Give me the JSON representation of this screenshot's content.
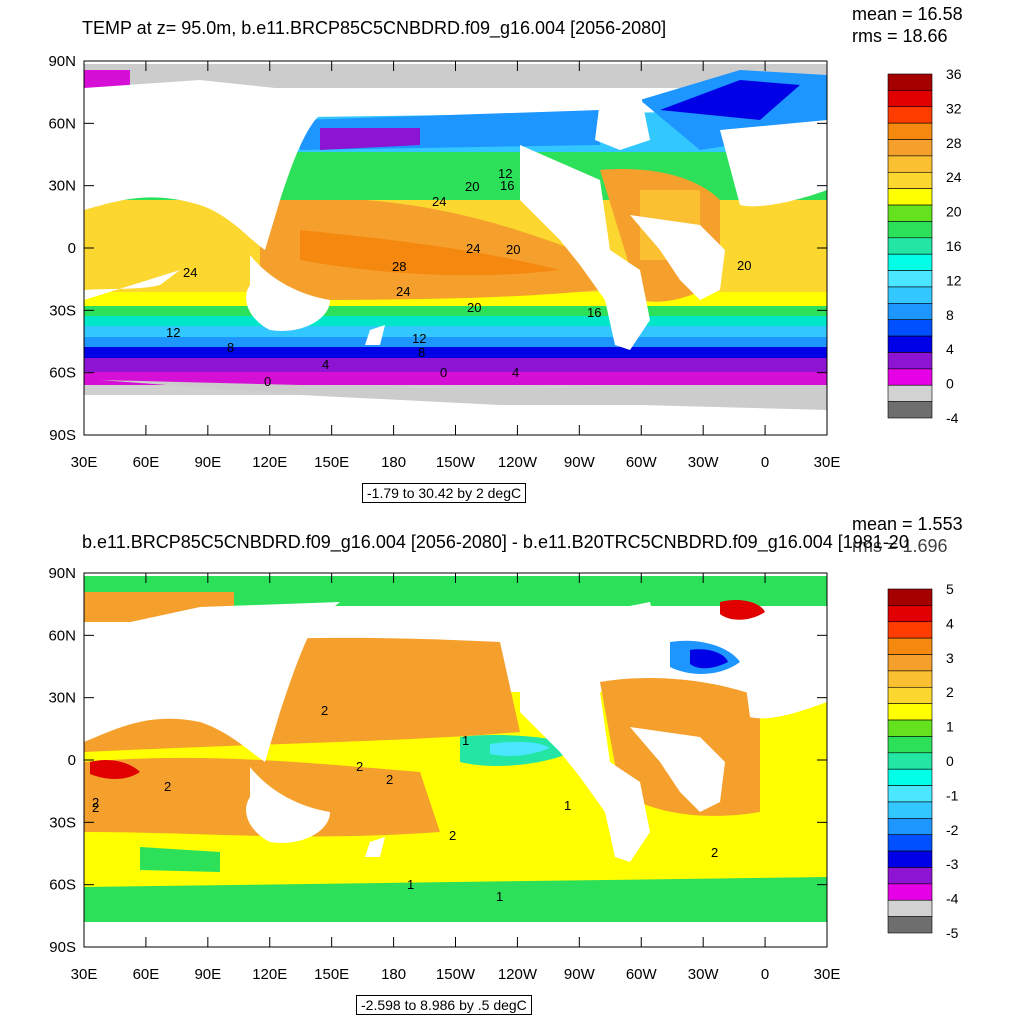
{
  "panels": [
    {
      "title": "TEMP at z=  95.0m, b.e11.BRCP85C5CNBDRD.f09_g16.004 [2056-2080]",
      "mean_text": "mean = 16.58",
      "rms_text": "rms = 18.66",
      "range_text": "-1.79 to 30.42 by 2 degC",
      "contour_labels": [
        "12",
        "16",
        "20",
        "24",
        "24",
        "24",
        "20",
        "20",
        "28",
        "24",
        "20",
        "16",
        "12",
        "8",
        "12",
        "8",
        "4",
        "4",
        "0",
        "0"
      ],
      "colorbar": {
        "labels": [
          "36",
          "32",
          "28",
          "24",
          "20",
          "16",
          "12",
          "8",
          "4",
          "0",
          "-4"
        ],
        "colors": [
          "#a50000",
          "#e00000",
          "#ff3c00",
          "#f5880f",
          "#f5a02d",
          "#fbbf32",
          "#fbd730",
          "#ffff00",
          "#64e21e",
          "#2de05a",
          "#23e6a5",
          "#00ffe6",
          "#4be6ff",
          "#32c8ff",
          "#1e96ff",
          "#0050ff",
          "#0000e6",
          "#8c14d2",
          "#e600e6",
          "#d2d2d2",
          "#6e6e6e"
        ]
      }
    },
    {
      "title": "b.e11.BRCP85C5CNBDRD.f09_g16.004 [2056-2080] - b.e11.B20TRC5CNBDRD.f09_g16.004 [1981-20",
      "mean_text": "mean = 1.553",
      "rms_text": "rms = 1.696",
      "range_text": "-2.598 to 8.986 by .5 degC",
      "contour_labels": [
        "2",
        "2",
        "2",
        "1",
        "2",
        "2",
        "1",
        "2",
        "2",
        "2",
        "1",
        "1"
      ],
      "colorbar": {
        "labels": [
          "5",
          "4",
          "3",
          "2",
          "1",
          "0",
          "-1",
          "-2",
          "-3",
          "-4",
          "-5"
        ],
        "colors": [
          "#a50000",
          "#e00000",
          "#ff3c00",
          "#f5880f",
          "#f5a02d",
          "#fbbf32",
          "#fbd730",
          "#ffff00",
          "#64e21e",
          "#2de05a",
          "#23e6a5",
          "#00ffe6",
          "#4be6ff",
          "#32c8ff",
          "#1e96ff",
          "#0050ff",
          "#0000e6",
          "#8c14d2",
          "#e600e6",
          "#d2d2d2",
          "#6e6e6e"
        ]
      }
    }
  ],
  "axes": {
    "lat_labels": [
      "90N",
      "60N",
      "30N",
      "0",
      "30S",
      "60S",
      "90S"
    ],
    "lon_labels": [
      "30E",
      "60E",
      "90E",
      "120E",
      "150E",
      "180",
      "150W",
      "120W",
      "90W",
      "60W",
      "30W",
      "0",
      "30E"
    ]
  }
}
